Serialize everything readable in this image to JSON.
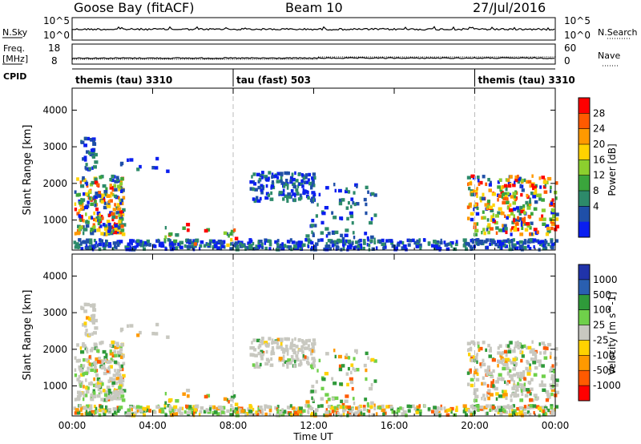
{
  "header": {
    "station": "Goose Bay (fitACF)",
    "beam": "Beam 10",
    "date": "27/Jul/2016"
  },
  "panels": {
    "nsky_label": "N.Sky",
    "nsky_ticks": [
      "10^5",
      "10^0"
    ],
    "nsearch_label": "N.Search",
    "nsearch_ticks": [
      "10^5",
      "10^0"
    ],
    "freq_label": "Freq.",
    "freq_unit": "[MHz]",
    "freq_ticks": [
      "18",
      "8"
    ],
    "nave_label": "Nave",
    "nave_ticks": [
      "60",
      "0"
    ],
    "cpid_label": "CPID",
    "cpid_segments": [
      {
        "label": "themis (tau) 3310",
        "start_h": 0,
        "end_h": 8
      },
      {
        "label": "tau (fast) 503",
        "start_h": 8,
        "end_h": 20
      },
      {
        "label": "themis (tau) 3310",
        "start_h": 20,
        "end_h": 24
      }
    ]
  },
  "chart_data": [
    {
      "type": "heatmap",
      "title": "",
      "ylabel": "Slant Range [km]",
      "xlabel": "",
      "xlim": [
        0,
        24
      ],
      "ylim": [
        180,
        4600
      ],
      "yticks": [
        "4000",
        "3000",
        "2000",
        "1000"
      ],
      "colorbar": {
        "label": "Power [dB]",
        "ticks": [
          "28",
          "24",
          "20",
          "16",
          "12",
          "8",
          "4"
        ],
        "colors": [
          "#ff0000",
          "#ff5a00",
          "#ff9900",
          "#ffd200",
          "#8ccf2e",
          "#3aa53c",
          "#2d8a6a",
          "#1f4fa8",
          "#0a1ef0"
        ]
      },
      "echo_regions": [
        {
          "t": [
            0.0,
            2.6
          ],
          "range": [
            600,
            2300
          ],
          "value": "mixed 4-28 dB"
        },
        {
          "t": [
            0.3,
            1.1
          ],
          "range": [
            2300,
            3300
          ],
          "value": "8 dB"
        },
        {
          "t": [
            8.7,
            12.0
          ],
          "range": [
            1500,
            2300
          ],
          "value": "8-12 dB"
        },
        {
          "t": [
            19.5,
            24.0
          ],
          "range": [
            600,
            2200
          ],
          "value": "mixed 4-28 dB"
        },
        {
          "t": [
            0.0,
            24.0
          ],
          "range": [
            180,
            450
          ],
          "value": "4-8 dB"
        }
      ]
    },
    {
      "type": "heatmap",
      "title": "",
      "ylabel": "Slant Range [km]",
      "xlabel": "Time UT",
      "xlim": [
        0,
        24
      ],
      "ylim": [
        180,
        4600
      ],
      "xticks": [
        "00:00",
        "04:00",
        "08:00",
        "12:00",
        "16:00",
        "20:00",
        "00:00"
      ],
      "yticks": [
        "4000",
        "3000",
        "2000",
        "1000"
      ],
      "colorbar": {
        "label": "Velocity [m s^-1]",
        "ticks": [
          "1000",
          "500",
          "100",
          "25",
          "-25",
          "-100",
          "-500",
          "-1000"
        ],
        "colors": [
          "#2033aa",
          "#2a5fb0",
          "#2f9a3a",
          "#6fd04a",
          "#c8c8c0",
          "#ffd200",
          "#ff9900",
          "#ff5a00",
          "#ff0000"
        ]
      },
      "echo_regions": [
        {
          "t": [
            0.0,
            2.6
          ],
          "range": [
            600,
            2300
          ],
          "value": "ground scatter (grey) with -100 to +100"
        },
        {
          "t": [
            8.7,
            12.0
          ],
          "range": [
            1500,
            2300
          ],
          "value": "ground scatter (grey)"
        },
        {
          "t": [
            19.5,
            24.0
          ],
          "range": [
            600,
            2200
          ],
          "value": "grey with +100 to -500"
        }
      ]
    }
  ]
}
